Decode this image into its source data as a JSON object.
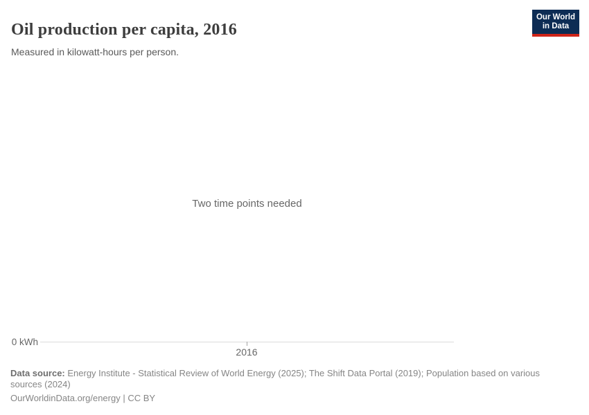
{
  "header": {
    "title": "Oil production per capita, 2016",
    "subtitle": "Measured in kilowatt-hours per person.",
    "logo": {
      "line1": "Our World",
      "line2": "in Data"
    }
  },
  "chart": {
    "empty_message": "Two time points needed",
    "y_axis_zero_label": "0 kWh",
    "x_tick_label": "2016"
  },
  "chart_data": {
    "type": "line",
    "title": "Oil production per capita, 2016",
    "ylabel_unit": "kilowatt-hours per person",
    "x_ticks": [
      "2016"
    ],
    "y_ticks": [
      "0 kWh"
    ],
    "series": [],
    "annotations": [
      "Two time points needed"
    ],
    "grid": false,
    "legend_position": "none",
    "note": "Empty chart state: only one time point selected, no data series rendered"
  },
  "footer": {
    "source_label": "Data source:",
    "source_text": " Energy Institute - Statistical Review of World Energy (2025); The Shift Data Portal (2019); Population based on various sources (2024)",
    "citation_url": "OurWorldinData.org/energy",
    "citation_separator": " | ",
    "citation_license": "CC BY"
  },
  "colors": {
    "logo_bg": "#0d2c54",
    "logo_accent": "#cf2419",
    "axis_line": "#dcdcdc",
    "title_text": "#3d3d3d",
    "muted_text": "#666666",
    "footer_text": "#858585"
  }
}
